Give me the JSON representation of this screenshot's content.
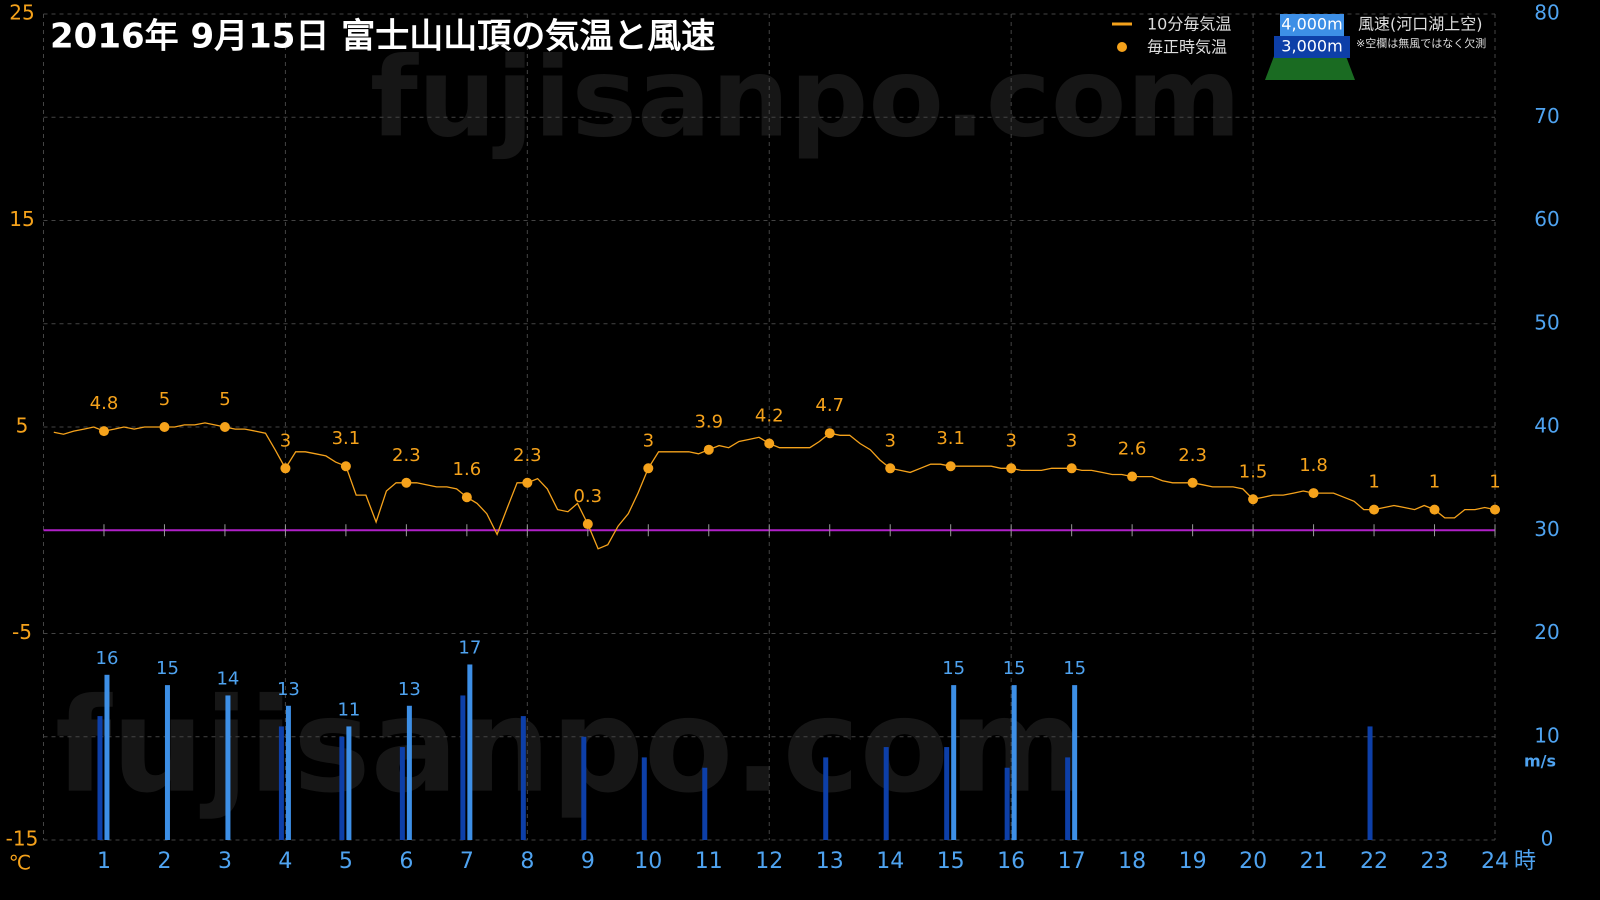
{
  "chart_data": {
    "type": "line",
    "title": "2016年  9月15日   富士山山頂の気温と風速",
    "watermark": "fujisanpo.com",
    "xlim": [
      0,
      24
    ],
    "xticks": [
      1,
      2,
      3,
      4,
      5,
      6,
      7,
      8,
      9,
      10,
      11,
      12,
      13,
      14,
      15,
      16,
      17,
      18,
      19,
      20,
      21,
      22,
      23,
      24
    ],
    "x_unit": "時",
    "xgrid": [
      0,
      4,
      8,
      12,
      16,
      20,
      24
    ],
    "ylim": [
      -15,
      25
    ],
    "yticks": [
      -15,
      -5,
      5,
      15,
      25
    ],
    "y_unit": "℃",
    "y2lim": [
      0,
      80
    ],
    "y2ticks": [
      0,
      10,
      20,
      30,
      40,
      50,
      60,
      70,
      80
    ],
    "y2_unit": "m/s",
    "grid": true,
    "reference_line": {
      "value": 0,
      "color": "#b020c8"
    },
    "wind_legend_title": "風速(河口湖上空)",
    "note": "※空欄は無風ではなく欠測",
    "series": [
      {
        "name": "10分毎気温",
        "type": "line",
        "color": "#f5a21b",
        "x": [
          0.17,
          0.33,
          0.5,
          0.67,
          0.83,
          1,
          1.17,
          1.33,
          1.5,
          1.67,
          1.83,
          2,
          2.17,
          2.33,
          2.5,
          2.67,
          2.83,
          3,
          3.17,
          3.33,
          3.5,
          3.67,
          3.83,
          4,
          4.17,
          4.33,
          4.5,
          4.67,
          4.83,
          5,
          5.17,
          5.33,
          5.5,
          5.67,
          5.83,
          6,
          6.17,
          6.33,
          6.5,
          6.67,
          6.83,
          7,
          7.17,
          7.33,
          7.5,
          7.67,
          7.83,
          8,
          8.17,
          8.33,
          8.5,
          8.67,
          8.83,
          9,
          9.17,
          9.33,
          9.5,
          9.67,
          9.83,
          10,
          10.17,
          10.33,
          10.5,
          10.67,
          10.83,
          11,
          11.17,
          11.33,
          11.5,
          11.67,
          11.83,
          12,
          12.17,
          12.33,
          12.5,
          12.67,
          12.83,
          13,
          13.17,
          13.33,
          13.5,
          13.67,
          13.83,
          14,
          14.17,
          14.33,
          14.5,
          14.67,
          14.83,
          15,
          15.17,
          15.33,
          15.5,
          15.67,
          15.83,
          16,
          16.17,
          16.33,
          16.5,
          16.67,
          16.83,
          17,
          17.17,
          17.33,
          17.5,
          17.67,
          17.83,
          18,
          18.17,
          18.33,
          18.5,
          18.67,
          18.83,
          19,
          19.17,
          19.33,
          19.5,
          19.67,
          19.83,
          20,
          20.17,
          20.33,
          20.5,
          20.67,
          20.83,
          21,
          21.17,
          21.33,
          21.5,
          21.67,
          21.83,
          22,
          22.17,
          22.33,
          22.5,
          22.67,
          22.83,
          23,
          23.17,
          23.33,
          23.5,
          23.67,
          23.83,
          24
        ],
        "values": [
          4.75,
          4.65,
          4.8,
          4.9,
          5.0,
          4.8,
          4.9,
          5.0,
          4.9,
          5.0,
          5.0,
          5.0,
          5.0,
          5.1,
          5.1,
          5.2,
          5.1,
          5.0,
          4.9,
          4.9,
          4.8,
          4.7,
          3.9,
          3.0,
          3.8,
          3.8,
          3.7,
          3.6,
          3.3,
          3.1,
          1.7,
          1.7,
          0.4,
          1.9,
          2.3,
          2.3,
          2.3,
          2.2,
          2.1,
          2.1,
          2.0,
          1.6,
          1.3,
          0.8,
          -0.2,
          1.1,
          2.3,
          2.3,
          2.5,
          2.0,
          1.0,
          0.9,
          1.3,
          0.3,
          -0.9,
          -0.7,
          0.2,
          0.8,
          1.8,
          3.0,
          3.8,
          3.8,
          3.8,
          3.8,
          3.7,
          3.9,
          4.1,
          4.0,
          4.3,
          4.4,
          4.5,
          4.2,
          4.0,
          4.0,
          4.0,
          4.0,
          4.3,
          4.7,
          4.6,
          4.6,
          4.2,
          3.9,
          3.4,
          3.0,
          2.9,
          2.8,
          3.0,
          3.2,
          3.2,
          3.1,
          3.1,
          3.1,
          3.1,
          3.1,
          3.0,
          3.0,
          2.9,
          2.9,
          2.9,
          3.0,
          3.0,
          3.0,
          2.9,
          2.9,
          2.8,
          2.7,
          2.7,
          2.6,
          2.6,
          2.6,
          2.4,
          2.3,
          2.3,
          2.3,
          2.2,
          2.1,
          2.1,
          2.1,
          2.0,
          1.5,
          1.6,
          1.7,
          1.7,
          1.8,
          1.9,
          1.8,
          1.8,
          1.8,
          1.6,
          1.4,
          1.0,
          1.0,
          1.1,
          1.2,
          1.1,
          1.0,
          1.2,
          1.0,
          0.6,
          0.6,
          1.0,
          1.0,
          1.1,
          1.0
        ]
      },
      {
        "name": "毎正時気温",
        "type": "scatter",
        "color": "#f5a21b",
        "labels": true,
        "x": [
          1,
          2,
          3,
          4,
          5,
          6,
          7,
          8,
          9,
          10,
          11,
          12,
          13,
          14,
          15,
          16,
          17,
          18,
          19,
          20,
          21,
          22,
          23,
          24
        ],
        "values": [
          4.8,
          5,
          5,
          3,
          3.1,
          2.3,
          1.6,
          2.3,
          0.3,
          3,
          3.9,
          4.2,
          4.7,
          3,
          3.1,
          3,
          3,
          2.6,
          2.3,
          1.5,
          1.8,
          1,
          1,
          1
        ]
      },
      {
        "name": "4,000m",
        "type": "bar",
        "axis": "y2",
        "color": "#3d8fe6",
        "labels": true,
        "x": [
          1,
          2,
          3,
          4,
          5,
          6,
          7,
          8,
          9,
          10,
          11,
          12,
          13,
          14,
          15,
          16,
          17,
          18,
          19,
          20,
          21,
          22,
          23,
          24
        ],
        "values": [
          16,
          15,
          14,
          13,
          11,
          13,
          17,
          null,
          null,
          null,
          null,
          null,
          null,
          null,
          15,
          15,
          15,
          null,
          null,
          null,
          null,
          null,
          null,
          null
        ]
      },
      {
        "name": "3,000m",
        "type": "bar",
        "axis": "y2",
        "color": "#0d3fa8",
        "x": [
          1,
          2,
          3,
          4,
          5,
          6,
          7,
          8,
          9,
          10,
          11,
          12,
          13,
          14,
          15,
          16,
          17,
          18,
          19,
          20,
          21,
          22,
          23,
          24
        ],
        "values": [
          12,
          null,
          null,
          11,
          10,
          9,
          14,
          12,
          10,
          8,
          7,
          null,
          8,
          9,
          9,
          7,
          8,
          null,
          null,
          null,
          null,
          11,
          null,
          null
        ]
      }
    ]
  }
}
